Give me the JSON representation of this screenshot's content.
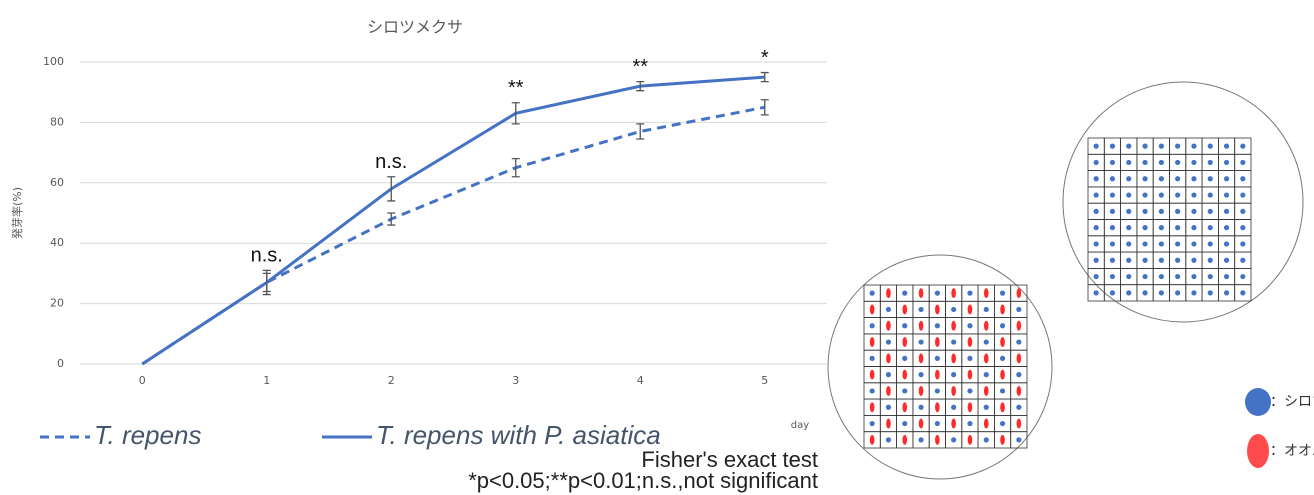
{
  "chart_data": {
    "type": "line",
    "title": "シロツメクサ",
    "y_label": "発芽率(%)",
    "x_label": "day",
    "x": [
      0,
      1,
      2,
      3,
      4,
      5
    ],
    "xlim": [
      -0.5,
      5.5
    ],
    "xticks": [
      0,
      1,
      2,
      3,
      4,
      5
    ],
    "ylim": [
      0,
      100
    ],
    "yticks": [
      0,
      20,
      40,
      60,
      80,
      100
    ],
    "grid": true,
    "series": [
      {
        "name": "T. repens",
        "color": "#4472c4",
        "dash": "dashed",
        "values": [
          0,
          27,
          48,
          65,
          77,
          85
        ],
        "errors": [
          null,
          3,
          2,
          3,
          2.5,
          2.5
        ]
      },
      {
        "name": "T. repens with P. asiatica",
        "color": "#4472c4",
        "dash": "solid",
        "values": [
          0,
          27,
          58,
          83,
          92,
          95
        ],
        "errors": [
          null,
          4,
          4,
          3.5,
          1.5,
          1.5
        ]
      }
    ],
    "annotations": [
      {
        "text": "n.s.",
        "x": 1
      },
      {
        "text": "n.s.",
        "x": 2
      },
      {
        "text": "**",
        "x": 3
      },
      {
        "text": "**",
        "x": 4
      },
      {
        "text": "*",
        "x": 5
      }
    ],
    "footnotes": [
      "Fisher's exact test",
      "*p<0.05;**p<0.01;n.s.,not significant"
    ]
  },
  "diagram": {
    "legend": [
      {
        "label": "：シロツメクサ種子",
        "color": "#4472c4"
      },
      {
        "label": "：オオバコ種子",
        "color": "#ff4b4b"
      }
    ]
  }
}
